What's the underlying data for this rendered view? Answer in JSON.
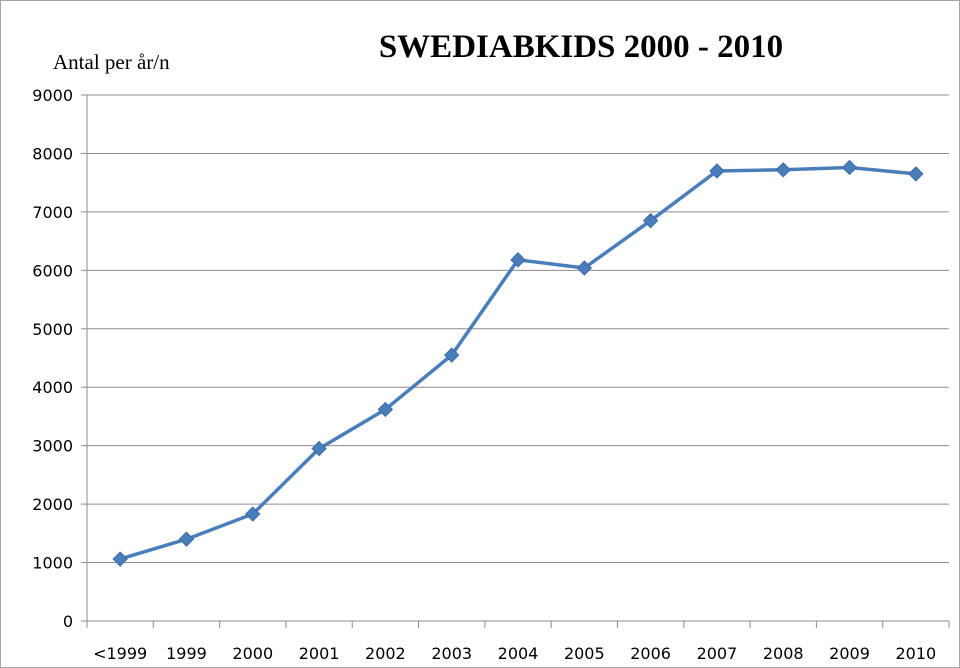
{
  "chart_data": {
    "type": "line",
    "title": "SWEDIABKIDS 2000 - 2010",
    "ylabel": "Antal per år/n",
    "xlabel": "",
    "categories": [
      "<1999",
      "1999",
      "2000",
      "2001",
      "2002",
      "2003",
      "2004",
      "2005",
      "2006",
      "2007",
      "2008",
      "2009",
      "2010"
    ],
    "series": [
      {
        "values": [
          1060,
          1400,
          1830,
          2950,
          3620,
          4550,
          6180,
          6040,
          6850,
          7700,
          7720,
          7760,
          7650
        ],
        "color": "#4a7ebb",
        "marker": "diamond"
      }
    ],
    "ylim": [
      0,
      9000
    ],
    "yticks": [
      0,
      1000,
      2000,
      3000,
      4000,
      5000,
      6000,
      7000,
      8000,
      9000
    ],
    "grid": true,
    "legend": "none"
  }
}
